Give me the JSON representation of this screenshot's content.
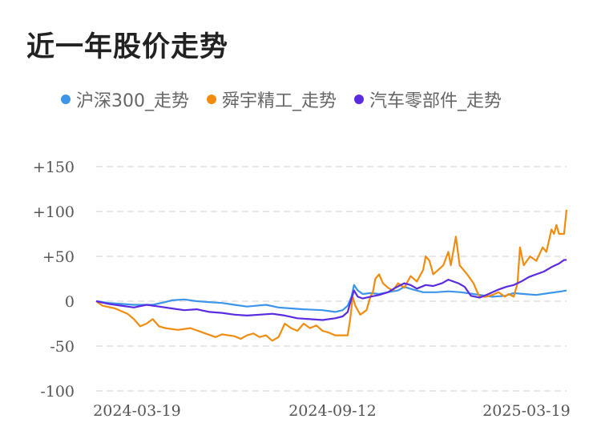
{
  "title": "近一年股价走势",
  "colors": {
    "hs300": "#3c95e8",
    "shunyu": "#f08c0f",
    "auto": "#5a2be0",
    "grid": "#e8e8e8"
  },
  "chart_data": {
    "type": "line",
    "title": "近一年股价走势",
    "xlabel": "",
    "ylabel": "",
    "ylim": [
      -100,
      150
    ],
    "yticks": [
      "+150",
      "+100",
      "+50",
      "0",
      "-50",
      "-100"
    ],
    "xticks": [
      "2024-03-19",
      "2024-09-12",
      "2025-03-19"
    ],
    "grid": true,
    "legend_position": "top",
    "x_start": "2024-03-19",
    "x_end": "2025-03-28",
    "series": [
      {
        "name": "沪深300_走势",
        "color": "#3c95e8",
        "points": [
          [
            0,
            0
          ],
          [
            10,
            -2
          ],
          [
            20,
            -3
          ],
          [
            30,
            -4
          ],
          [
            45,
            -4
          ],
          [
            55,
            -1
          ],
          [
            60,
            1
          ],
          [
            70,
            2
          ],
          [
            80,
            0
          ],
          [
            90,
            -1
          ],
          [
            100,
            -2
          ],
          [
            110,
            -4
          ],
          [
            120,
            -6
          ],
          [
            135,
            -4
          ],
          [
            145,
            -7
          ],
          [
            155,
            -8
          ],
          [
            165,
            -9
          ],
          [
            180,
            -10
          ],
          [
            190,
            -12
          ],
          [
            196,
            -10
          ],
          [
            200,
            -5
          ],
          [
            203,
            5
          ],
          [
            205,
            18
          ],
          [
            208,
            12
          ],
          [
            212,
            8
          ],
          [
            218,
            9
          ],
          [
            225,
            8
          ],
          [
            232,
            10
          ],
          [
            240,
            12
          ],
          [
            245,
            16
          ],
          [
            252,
            13
          ],
          [
            260,
            10
          ],
          [
            270,
            10
          ],
          [
            280,
            11
          ],
          [
            290,
            10
          ],
          [
            300,
            8
          ],
          [
            310,
            6
          ],
          [
            315,
            5
          ],
          [
            325,
            6
          ],
          [
            332,
            9
          ],
          [
            340,
            8
          ],
          [
            350,
            7
          ],
          [
            360,
            9
          ],
          [
            370,
            11
          ],
          [
            374,
            12
          ]
        ]
      },
      {
        "name": "舜宇精工_走势",
        "color": "#f08c0f",
        "points": [
          [
            0,
            0
          ],
          [
            5,
            -5
          ],
          [
            15,
            -8
          ],
          [
            25,
            -14
          ],
          [
            30,
            -20
          ],
          [
            35,
            -28
          ],
          [
            40,
            -25
          ],
          [
            45,
            -20
          ],
          [
            50,
            -28
          ],
          [
            55,
            -30
          ],
          [
            65,
            -32
          ],
          [
            75,
            -30
          ],
          [
            85,
            -35
          ],
          [
            95,
            -40
          ],
          [
            100,
            -37
          ],
          [
            110,
            -39
          ],
          [
            115,
            -42
          ],
          [
            120,
            -38
          ],
          [
            125,
            -36
          ],
          [
            130,
            -40
          ],
          [
            135,
            -38
          ],
          [
            140,
            -44
          ],
          [
            145,
            -40
          ],
          [
            150,
            -25
          ],
          [
            155,
            -30
          ],
          [
            160,
            -33
          ],
          [
            165,
            -25
          ],
          [
            170,
            -30
          ],
          [
            175,
            -27
          ],
          [
            180,
            -33
          ],
          [
            185,
            -35
          ],
          [
            190,
            -38
          ],
          [
            195,
            -38
          ],
          [
            200,
            -38
          ],
          [
            202,
            -20
          ],
          [
            204,
            5
          ],
          [
            206,
            -5
          ],
          [
            210,
            -15
          ],
          [
            215,
            -10
          ],
          [
            218,
            5
          ],
          [
            220,
            10
          ],
          [
            222,
            25
          ],
          [
            225,
            30
          ],
          [
            228,
            20
          ],
          [
            232,
            15
          ],
          [
            236,
            12
          ],
          [
            240,
            20
          ],
          [
            245,
            15
          ],
          [
            250,
            28
          ],
          [
            255,
            22
          ],
          [
            260,
            35
          ],
          [
            262,
            50
          ],
          [
            265,
            45
          ],
          [
            268,
            30
          ],
          [
            272,
            35
          ],
          [
            276,
            40
          ],
          [
            280,
            55
          ],
          [
            282,
            40
          ],
          [
            286,
            72
          ],
          [
            289,
            40
          ],
          [
            292,
            35
          ],
          [
            296,
            28
          ],
          [
            300,
            20
          ],
          [
            303,
            10
          ],
          [
            305,
            5
          ],
          [
            310,
            5
          ],
          [
            315,
            7
          ],
          [
            320,
            10
          ],
          [
            325,
            5
          ],
          [
            328,
            8
          ],
          [
            332,
            5
          ],
          [
            335,
            20
          ],
          [
            337,
            60
          ],
          [
            340,
            40
          ],
          [
            345,
            50
          ],
          [
            350,
            45
          ],
          [
            355,
            60
          ],
          [
            358,
            55
          ],
          [
            362,
            80
          ],
          [
            364,
            75
          ],
          [
            366,
            85
          ],
          [
            368,
            75
          ],
          [
            372,
            75
          ],
          [
            374,
            102
          ]
        ]
      },
      {
        "name": "汽车零部件_走势",
        "color": "#5a2be0",
        "points": [
          [
            0,
            0
          ],
          [
            10,
            -3
          ],
          [
            20,
            -5
          ],
          [
            30,
            -7
          ],
          [
            40,
            -4
          ],
          [
            50,
            -6
          ],
          [
            60,
            -8
          ],
          [
            70,
            -10
          ],
          [
            80,
            -9
          ],
          [
            90,
            -12
          ],
          [
            100,
            -13
          ],
          [
            110,
            -15
          ],
          [
            120,
            -16
          ],
          [
            130,
            -15
          ],
          [
            140,
            -14
          ],
          [
            150,
            -16
          ],
          [
            160,
            -19
          ],
          [
            170,
            -20
          ],
          [
            180,
            -21
          ],
          [
            190,
            -19
          ],
          [
            196,
            -17
          ],
          [
            200,
            -12
          ],
          [
            202,
            -2
          ],
          [
            205,
            12
          ],
          [
            208,
            5
          ],
          [
            212,
            3
          ],
          [
            218,
            5
          ],
          [
            225,
            7
          ],
          [
            232,
            10
          ],
          [
            238,
            15
          ],
          [
            245,
            20
          ],
          [
            250,
            18
          ],
          [
            255,
            14
          ],
          [
            262,
            18
          ],
          [
            268,
            17
          ],
          [
            275,
            20
          ],
          [
            280,
            24
          ],
          [
            288,
            20
          ],
          [
            293,
            16
          ],
          [
            298,
            6
          ],
          [
            305,
            4
          ],
          [
            312,
            8
          ],
          [
            320,
            13
          ],
          [
            326,
            16
          ],
          [
            332,
            18
          ],
          [
            338,
            22
          ],
          [
            344,
            27
          ],
          [
            350,
            30
          ],
          [
            356,
            33
          ],
          [
            362,
            38
          ],
          [
            368,
            42
          ],
          [
            372,
            46
          ],
          [
            374,
            46
          ]
        ]
      }
    ]
  }
}
